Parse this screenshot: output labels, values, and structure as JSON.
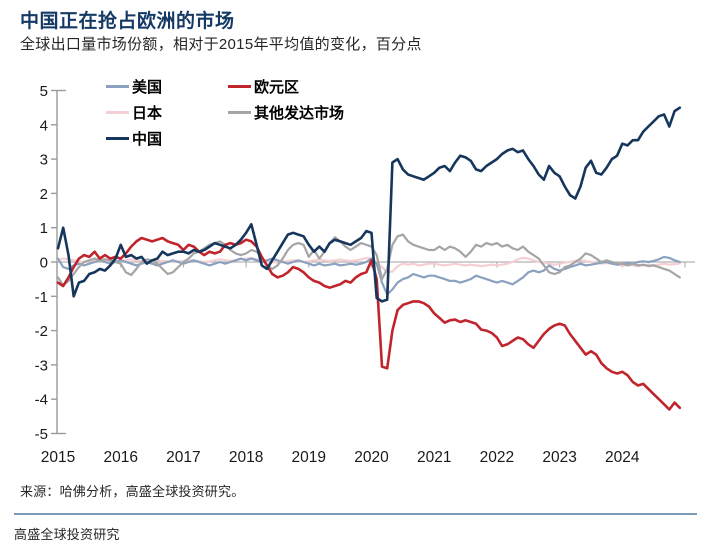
{
  "page": {
    "title": "中国正在抢占欧洲的市场",
    "subtitle": "全球出口量市场份额，相对于2015年平均值的变化，百分点",
    "source": "来源：哈佛分析，高盛全球投资研究。",
    "footer": "高盛全球投资研究"
  },
  "colors": {
    "title_navy": "#153a66",
    "axis_gray": "#9b9b9b",
    "zero_line_gray": "#b3b3b3",
    "tick_text": "#1a1a1a",
    "divider_blue": "#7d99b8"
  },
  "chart_data": {
    "type": "line",
    "title": "中国正在抢占欧洲的市场",
    "subtitle": "全球出口量市场份额，相对于2015年平均值的变化，百分点",
    "x_start_year": 2015,
    "points_per_year": 12,
    "x_tick_labels": [
      "2015",
      "2016",
      "2017",
      "2018",
      "2019",
      "2020",
      "2021",
      "2022",
      "2023",
      "2024"
    ],
    "y_ticks": [
      5,
      4,
      3,
      2,
      1,
      0,
      -1,
      -2,
      -3,
      -4,
      -5
    ],
    "ylim": [
      -5,
      5
    ],
    "grid": "zero-line-only",
    "legend_position": "top-left-two-columns",
    "legend_columns": [
      [
        "us",
        "japan",
        "china"
      ],
      [
        "eurozone",
        "other_dm"
      ]
    ],
    "series": [
      {
        "key": "japan",
        "name": "日本",
        "color": "#f4cfd3",
        "width": 2.2,
        "values": [
          0.05,
          0.1,
          0.08,
          0.05,
          0.02,
          0,
          0.03,
          0.05,
          0.04,
          0.03,
          0.05,
          0.04,
          0.03,
          0.05,
          0.08,
          0.05,
          0.03,
          0.02,
          0.04,
          0.05,
          0.03,
          0.02,
          0,
          0.02,
          0.03,
          0.05,
          0.04,
          0.02,
          0,
          0.02,
          0.05,
          0.08,
          0.05,
          0.03,
          0.05,
          0.08,
          0.1,
          0.12,
          0.08,
          0.05,
          0.02,
          0,
          -0.02,
          0,
          0.03,
          0.05,
          0.03,
          0,
          0.02,
          0.05,
          0.08,
          0.05,
          0.03,
          0.05,
          0.07,
          0.05,
          0.03,
          0.05,
          0.08,
          0.12,
          0.1,
          0,
          -0.15,
          -0.3,
          -0.28,
          -0.12,
          -0.05,
          -0.08,
          -0.05,
          -0.1,
          -0.08,
          -0.05,
          -0.05,
          -0.08,
          -0.1,
          -0.08,
          -0.05,
          -0.08,
          -0.1,
          -0.08,
          -0.1,
          -0.12,
          -0.1,
          -0.08,
          -0.1,
          -0.08,
          -0.05,
          0,
          0.08,
          0.12,
          0.1,
          0.05,
          0,
          -0.02,
          -0.05,
          -0.08,
          -0.05,
          -0.02,
          0,
          0.03,
          0.05,
          0.03,
          0,
          -0.03,
          -0.05,
          -0.03,
          -0.05,
          -0.08,
          -0.1,
          -0.08,
          -0.1,
          -0.12,
          -0.1,
          -0.08,
          -0.1,
          -0.08,
          -0.05,
          -0.08,
          -0.06,
          -0.04
        ]
      },
      {
        "key": "us",
        "name": "美国",
        "color": "#8aa1c0",
        "width": 2.2,
        "values": [
          0.1,
          -0.15,
          -0.2,
          -0.1,
          -0.05,
          -0.1,
          -0.05,
          0,
          0.05,
          0,
          -0.05,
          0,
          0.05,
          0,
          -0.05,
          -0.1,
          -0.05,
          0,
          -0.05,
          -0.1,
          -0.05,
          0,
          0.05,
          0,
          -0.05,
          0,
          0.05,
          0,
          -0.05,
          -0.1,
          -0.05,
          0,
          -0.05,
          0,
          0.05,
          0.1,
          0.05,
          0.1,
          0.05,
          0,
          0.05,
          0.1,
          0.05,
          0,
          -0.05,
          0,
          0.05,
          0,
          -0.05,
          -0.1,
          -0.05,
          -0.1,
          -0.08,
          -0.05,
          -0.1,
          -0.08,
          -0.05,
          -0.08,
          -0.05,
          0,
          0.1,
          -0.05,
          -0.6,
          -0.95,
          -0.8,
          -0.6,
          -0.5,
          -0.45,
          -0.35,
          -0.4,
          -0.45,
          -0.4,
          -0.4,
          -0.45,
          -0.5,
          -0.55,
          -0.55,
          -0.6,
          -0.55,
          -0.5,
          -0.4,
          -0.45,
          -0.5,
          -0.55,
          -0.6,
          -0.55,
          -0.6,
          -0.65,
          -0.55,
          -0.45,
          -0.3,
          -0.25,
          -0.3,
          -0.25,
          -0.1,
          -0.2,
          -0.25,
          -0.2,
          -0.15,
          -0.1,
          -0.05,
          -0.1,
          -0.08,
          -0.05,
          -0.02,
          0,
          -0.05,
          -0.08,
          -0.05,
          -0.02,
          -0.05,
          0,
          0.02,
          0,
          0.03,
          0.08,
          0.15,
          0.12,
          0.05,
          0
        ]
      },
      {
        "key": "other_dm",
        "name": "其他发达市场",
        "color": "#a5a5a5",
        "width": 2.2,
        "values": [
          -0.45,
          -0.68,
          -0.55,
          -0.35,
          -0.15,
          0,
          0.05,
          0.1,
          0.05,
          0.08,
          0.05,
          0,
          -0.05,
          -0.3,
          -0.38,
          -0.2,
          0,
          0.08,
          0.05,
          -0.05,
          -0.2,
          -0.35,
          -0.3,
          -0.15,
          0,
          0.1,
          0.25,
          0.3,
          0.4,
          0.5,
          0.55,
          0.6,
          0.5,
          0.35,
          0.25,
          0.2,
          0.25,
          0.35,
          0.3,
          0.15,
          -0.1,
          -0.2,
          -0.1,
          0.1,
          0.35,
          0.5,
          0.55,
          0.5,
          0.15,
          0.35,
          0.1,
          0.3,
          0.55,
          0.72,
          0.6,
          0.45,
          0.35,
          0.45,
          0.55,
          0.5,
          0.45,
          0.2,
          -0.5,
          -0.2,
          0.5,
          0.75,
          0.8,
          0.6,
          0.5,
          0.45,
          0.4,
          0.35,
          0.35,
          0.45,
          0.35,
          0.45,
          0.4,
          0.3,
          0.15,
          0.3,
          0.5,
          0.45,
          0.55,
          0.5,
          0.55,
          0.45,
          0.5,
          0.4,
          0.35,
          0.45,
          0.3,
          0.2,
          0.1,
          -0.1,
          -0.3,
          -0.35,
          -0.3,
          -0.15,
          -0.1,
          0,
          0.1,
          0.25,
          0.2,
          0.1,
          0,
          0.05,
          0,
          -0.05,
          -0.05,
          -0.1,
          -0.05,
          -0.1,
          -0.08,
          -0.12,
          -0.1,
          -0.15,
          -0.2,
          -0.25,
          -0.35,
          -0.45
        ]
      },
      {
        "key": "eurozone",
        "name": "欧元区",
        "color": "#c0242c",
        "width": 2.6,
        "values": [
          -0.6,
          -0.7,
          -0.45,
          -0.15,
          0.1,
          0.2,
          0.15,
          0.3,
          0.1,
          0.2,
          0.1,
          0.15,
          0.1,
          0.25,
          0.45,
          0.6,
          0.7,
          0.65,
          0.6,
          0.65,
          0.7,
          0.6,
          0.55,
          0.5,
          0.35,
          0.5,
          0.45,
          0.3,
          0.2,
          0.3,
          0.25,
          0.3,
          0.5,
          0.55,
          0.5,
          0.55,
          0.65,
          0.6,
          0.45,
          0.15,
          -0.1,
          -0.35,
          -0.45,
          -0.4,
          -0.3,
          -0.15,
          -0.2,
          -0.3,
          -0.45,
          -0.55,
          -0.6,
          -0.7,
          -0.75,
          -0.7,
          -0.65,
          -0.55,
          -0.6,
          -0.45,
          -0.35,
          -0.3,
          0.05,
          -0.5,
          -3.05,
          -3.1,
          -2.0,
          -1.4,
          -1.25,
          -1.2,
          -1.15,
          -1.15,
          -1.2,
          -1.3,
          -1.5,
          -1.63,
          -1.77,
          -1.7,
          -1.68,
          -1.75,
          -1.7,
          -1.75,
          -1.8,
          -1.97,
          -2.0,
          -2.07,
          -2.2,
          -2.45,
          -2.4,
          -2.3,
          -2.2,
          -2.25,
          -2.4,
          -2.5,
          -2.3,
          -2.1,
          -1.95,
          -1.85,
          -1.8,
          -1.85,
          -2.1,
          -2.3,
          -2.5,
          -2.7,
          -2.6,
          -2.7,
          -2.95,
          -3.1,
          -3.2,
          -3.25,
          -3.2,
          -3.3,
          -3.5,
          -3.6,
          -3.55,
          -3.7,
          -3.85,
          -4.0,
          -4.15,
          -4.3,
          -4.1,
          -4.25
        ]
      },
      {
        "key": "china",
        "name": "中国",
        "color": "#16365c",
        "width": 2.6,
        "values": [
          0.4,
          1.0,
          0.2,
          -1.0,
          -0.6,
          -0.55,
          -0.35,
          -0.3,
          -0.2,
          -0.25,
          -0.1,
          0.1,
          0.5,
          0.15,
          0.2,
          0.1,
          0.15,
          -0.05,
          0.05,
          0.1,
          0.3,
          0.2,
          0.25,
          0.3,
          0.3,
          0.25,
          0.35,
          0.3,
          0.35,
          0.45,
          0.55,
          0.5,
          0.45,
          0.4,
          0.5,
          0.65,
          0.85,
          1.1,
          0.5,
          -0.1,
          -0.2,
          0.05,
          0.3,
          0.55,
          0.8,
          0.85,
          0.8,
          0.75,
          0.5,
          0.3,
          0.45,
          0.3,
          0.55,
          0.65,
          0.6,
          0.55,
          0.5,
          0.6,
          0.7,
          0.9,
          0.85,
          -1.05,
          -1.15,
          -1.1,
          2.9,
          3.0,
          2.7,
          2.55,
          2.5,
          2.45,
          2.4,
          2.5,
          2.6,
          2.75,
          2.8,
          2.65,
          2.9,
          3.1,
          3.05,
          2.95,
          2.7,
          2.65,
          2.8,
          2.9,
          3.0,
          3.15,
          3.25,
          3.3,
          3.2,
          3.25,
          3.0,
          2.8,
          2.55,
          2.4,
          2.8,
          2.6,
          2.5,
          2.2,
          1.95,
          1.85,
          2.2,
          2.75,
          2.95,
          2.6,
          2.55,
          2.75,
          3.0,
          3.1,
          3.45,
          3.4,
          3.55,
          3.55,
          3.8,
          3.95,
          4.1,
          4.25,
          4.3,
          3.95,
          4.4,
          4.5
        ]
      }
    ]
  }
}
